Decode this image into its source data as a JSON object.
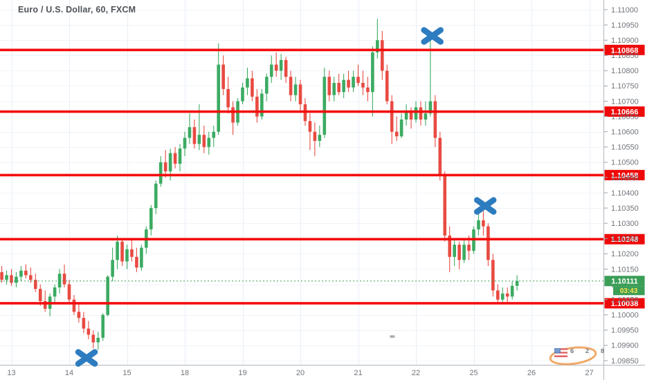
{
  "header": {
    "title": "Euro / U.S. Dollar, 60, FXCM"
  },
  "colors": {
    "up": "#3cab62",
    "down": "#e84b42",
    "level_line": "#f30d0d",
    "level_label_bg": "#ef0a0a",
    "level_label_text": "#ffffff",
    "mark_blue": "#2e7cc0",
    "price_label_bg": "#3b9e57",
    "price_label_text": "#ffffff",
    "countdown_text": "#ffe24c",
    "axis_text": "#70747a",
    "grid_horizontal": "#f0f4f8",
    "grid_vertical": "#e9eef6",
    "axis_line": "#b0b4ba",
    "dotted_line": "#3b9e57",
    "watermark_orange": "#f0a058"
  },
  "y_axis": {
    "ticks": [
      "1.11000",
      "1.10950",
      "1.10900",
      "1.10850",
      "1.10800",
      "1.10750",
      "1.10700",
      "1.10650",
      "1.10600",
      "1.10550",
      "1.10500",
      "1.10450",
      "1.10400",
      "1.10350",
      "1.10300",
      "1.10250",
      "1.10200",
      "1.10150",
      "1.10100",
      "1.10050",
      "1.10000",
      "1.09950",
      "1.09900",
      "1.09850"
    ]
  },
  "x_axis": {
    "labels": [
      "13",
      "14",
      "15",
      "18",
      "19",
      "20",
      "21",
      "22",
      "25",
      "26",
      "27"
    ]
  },
  "levels": [
    {
      "label": "1.10868",
      "price": 1.10868
    },
    {
      "label": "1.10666",
      "price": 1.10666
    },
    {
      "label": "1.10458",
      "price": 1.10458
    },
    {
      "label": "1.10248",
      "price": 1.10248
    },
    {
      "label": "1.10038",
      "price": 1.10038
    }
  ],
  "current_price": {
    "label": "1.10111",
    "value": 1.10111,
    "countdown": "03:43"
  },
  "watermark": {
    "text": "6 2 8"
  },
  "chart_data": {
    "type": "candlestick",
    "title": "Euro / U.S. Dollar, 60, FXCM",
    "symbol": "Euro / U.S. Dollar",
    "interval": "60",
    "exchange": "FXCM",
    "price_range": [
      1.0985,
      1.11
    ],
    "tick_step": 0.0005,
    "days": [
      "13",
      "14",
      "15",
      "18",
      "19",
      "20",
      "21",
      "22",
      "25",
      "26",
      "27"
    ],
    "candles_per_day": 12,
    "horizontal_levels": [
      1.10868,
      1.10666,
      1.10458,
      1.10248,
      1.10038
    ],
    "last_price": 1.10111,
    "marks": [
      {
        "slot": 15.6,
        "price": 1.09859
      },
      {
        "slot": 87.4,
        "price": 1.10914
      },
      {
        "slot": 98.4,
        "price": 1.10357
      }
    ],
    "annotations": [
      {
        "type": "dash",
        "slot": 79.1,
        "price": 1.09929
      }
    ],
    "candles": [
      [
        -2,
        1.1014,
        1.1016,
        1.10105,
        1.10115
      ],
      [
        -1,
        1.10115,
        1.10145,
        1.101,
        1.1013
      ],
      [
        0,
        1.1013,
        1.1015,
        1.10095,
        1.10105
      ],
      [
        1,
        1.10105,
        1.1014,
        1.1009,
        1.10125
      ],
      [
        2,
        1.10125,
        1.1016,
        1.1011,
        1.10145
      ],
      [
        3,
        1.10145,
        1.10165,
        1.1012,
        1.1013
      ],
      [
        4,
        1.1013,
        1.10155,
        1.10105,
        1.10115
      ],
      [
        5,
        1.10115,
        1.10135,
        1.10075,
        1.10085
      ],
      [
        6,
        1.10085,
        1.101,
        1.1003,
        1.10045
      ],
      [
        7,
        1.10045,
        1.1008,
        1.1001,
        1.1002
      ],
      [
        8,
        1.1002,
        1.1007,
        1.09995,
        1.1006
      ],
      [
        9,
        1.1006,
        1.101,
        1.1004,
        1.1009
      ],
      [
        10,
        1.1009,
        1.1015,
        1.1007,
        1.10135
      ],
      [
        11,
        1.10135,
        1.10165,
        1.1009,
        1.101
      ],
      [
        12,
        1.101,
        1.10115,
        1.1004,
        1.1005
      ],
      [
        13,
        1.1005,
        1.10065,
        1.1,
        1.1001
      ],
      [
        14,
        1.1001,
        1.1004,
        1.09975,
        1.0999
      ],
      [
        15,
        1.0999,
        1.1001,
        1.0994,
        1.09955
      ],
      [
        16,
        1.09955,
        1.0998,
        1.0992,
        1.09935
      ],
      [
        17,
        1.09935,
        1.0995,
        1.0989,
        1.0991
      ],
      [
        18,
        1.0991,
        1.09945,
        1.09885,
        1.09925
      ],
      [
        19,
        1.09925,
        1.10005,
        1.09915,
        1.1
      ],
      [
        20,
        1.1,
        1.1013,
        1.09995,
        1.10125
      ],
      [
        21,
        1.10125,
        1.1022,
        1.1011,
        1.1018
      ],
      [
        22,
        1.1018,
        1.1026,
        1.1015,
        1.1024
      ],
      [
        23,
        1.1024,
        1.1025,
        1.1016,
        1.10175
      ],
      [
        24,
        1.10175,
        1.1023,
        1.1015,
        1.10215
      ],
      [
        25,
        1.10215,
        1.10245,
        1.10175,
        1.1019
      ],
      [
        26,
        1.1019,
        1.1022,
        1.1014,
        1.10155
      ],
      [
        27,
        1.10155,
        1.1023,
        1.10145,
        1.1022
      ],
      [
        28,
        1.1022,
        1.1029,
        1.102,
        1.1028
      ],
      [
        29,
        1.1028,
        1.1036,
        1.1026,
        1.1035
      ],
      [
        30,
        1.1035,
        1.1044,
        1.1033,
        1.1043
      ],
      [
        31,
        1.1043,
        1.1052,
        1.1042,
        1.105
      ],
      [
        32,
        1.105,
        1.1054,
        1.1045,
        1.1047
      ],
      [
        33,
        1.1047,
        1.10545,
        1.1044,
        1.1053
      ],
      [
        34,
        1.1053,
        1.1055,
        1.1048,
        1.10495
      ],
      [
        35,
        1.10495,
        1.1056,
        1.1047,
        1.10545
      ],
      [
        36,
        1.10545,
        1.106,
        1.1052,
        1.1058
      ],
      [
        37,
        1.1058,
        1.1066,
        1.1056,
        1.10615
      ],
      [
        38,
        1.10615,
        1.1064,
        1.10545,
        1.1056
      ],
      [
        39,
        1.1056,
        1.1069,
        1.1054,
        1.1059
      ],
      [
        40,
        1.1059,
        1.1062,
        1.1053,
        1.1055
      ],
      [
        41,
        1.1055,
        1.106,
        1.10525,
        1.1058
      ],
      [
        42,
        1.1058,
        1.1062,
        1.1055,
        1.106
      ],
      [
        43,
        1.106,
        1.1089,
        1.1059,
        1.1082
      ],
      [
        44,
        1.1082,
        1.1085,
        1.1072,
        1.1074
      ],
      [
        45,
        1.1074,
        1.1078,
        1.1066,
        1.1068
      ],
      [
        46,
        1.1068,
        1.107,
        1.1059,
        1.1063
      ],
      [
        47,
        1.1063,
        1.1071,
        1.1062,
        1.107
      ],
      [
        48,
        1.107,
        1.1076,
        1.1069,
        1.10745
      ],
      [
        49,
        1.10745,
        1.1081,
        1.1072,
        1.10775
      ],
      [
        50,
        1.10775,
        1.108,
        1.107,
        1.10715
      ],
      [
        51,
        1.10715,
        1.1074,
        1.1063,
        1.1065
      ],
      [
        52,
        1.1065,
        1.1074,
        1.1064,
        1.10725
      ],
      [
        53,
        1.10725,
        1.1079,
        1.107,
        1.1078
      ],
      [
        54,
        1.1078,
        1.1085,
        1.1076,
        1.1082
      ],
      [
        55,
        1.1082,
        1.1086,
        1.1078,
        1.108
      ],
      [
        56,
        1.108,
        1.10855,
        1.1077,
        1.10835
      ],
      [
        57,
        1.10835,
        1.10845,
        1.1076,
        1.1078
      ],
      [
        58,
        1.1078,
        1.108,
        1.107,
        1.1072
      ],
      [
        59,
        1.1072,
        1.1078,
        1.107,
        1.10755
      ],
      [
        60,
        1.10755,
        1.1077,
        1.1067,
        1.1069
      ],
      [
        61,
        1.1069,
        1.1071,
        1.1062,
        1.10635
      ],
      [
        62,
        1.10635,
        1.1066,
        1.1054,
        1.106
      ],
      [
        63,
        1.106,
        1.1063,
        1.1052,
        1.1057
      ],
      [
        64,
        1.1057,
        1.1062,
        1.1055,
        1.1059
      ],
      [
        65,
        1.1059,
        1.1081,
        1.1058,
        1.1078
      ],
      [
        66,
        1.1078,
        1.108,
        1.107,
        1.1072
      ],
      [
        67,
        1.1072,
        1.1078,
        1.107,
        1.1076
      ],
      [
        68,
        1.1076,
        1.1079,
        1.1072,
        1.1073
      ],
      [
        69,
        1.1073,
        1.1079,
        1.1071,
        1.1077
      ],
      [
        70,
        1.1077,
        1.108,
        1.1073,
        1.10745
      ],
      [
        71,
        1.10745,
        1.108,
        1.1073,
        1.1078
      ],
      [
        72,
        1.1078,
        1.1082,
        1.1075,
        1.1076
      ],
      [
        73,
        1.1076,
        1.108,
        1.1072,
        1.10745
      ],
      [
        74,
        1.10745,
        1.1078,
        1.107,
        1.1073
      ],
      [
        75,
        1.1073,
        1.1088,
        1.1065,
        1.1086
      ],
      [
        76,
        1.1086,
        1.1097,
        1.1084,
        1.109
      ],
      [
        77,
        1.109,
        1.1093,
        1.1077,
        1.108
      ],
      [
        78,
        1.108,
        1.1082,
        1.1069,
        1.107
      ],
      [
        79,
        1.107,
        1.1072,
        1.1056,
        1.106
      ],
      [
        80,
        1.106,
        1.1065,
        1.1057,
        1.10585
      ],
      [
        81,
        1.10585,
        1.1066,
        1.1058,
        1.1064
      ],
      [
        82,
        1.1064,
        1.1069,
        1.1062,
        1.10665
      ],
      [
        83,
        1.10665,
        1.1068,
        1.1061,
        1.1064
      ],
      [
        84,
        1.1064,
        1.107,
        1.1063,
        1.1068
      ],
      [
        85,
        1.1068,
        1.107,
        1.1062,
        1.1064
      ],
      [
        86,
        1.1064,
        1.107,
        1.1062,
        1.1066
      ],
      [
        87,
        1.1066,
        1.1092,
        1.1065,
        1.107
      ],
      [
        88,
        1.107,
        1.1072,
        1.1055,
        1.1058
      ],
      [
        89,
        1.1058,
        1.106,
        1.1044,
        1.1046
      ],
      [
        90,
        1.1046,
        1.1047,
        1.1024,
        1.1026
      ],
      [
        91,
        1.1026,
        1.1029,
        1.1014,
        1.1019
      ],
      [
        92,
        1.1019,
        1.1025,
        1.1016,
        1.1023
      ],
      [
        93,
        1.1023,
        1.1024,
        1.1015,
        1.1018
      ],
      [
        94,
        1.1018,
        1.1025,
        1.1017,
        1.1023
      ],
      [
        95,
        1.1023,
        1.1026,
        1.1018,
        1.1021
      ],
      [
        96,
        1.1021,
        1.1029,
        1.102,
        1.1028
      ],
      [
        97,
        1.1028,
        1.1035,
        1.1026,
        1.1031
      ],
      [
        98,
        1.1031,
        1.1034,
        1.1026,
        1.1029
      ],
      [
        99,
        1.1029,
        1.103,
        1.1016,
        1.1018
      ],
      [
        100,
        1.1018,
        1.102,
        1.1006,
        1.1008
      ],
      [
        101,
        1.1008,
        1.101,
        1.10035,
        1.1005
      ],
      [
        102,
        1.1005,
        1.1009,
        1.1004,
        1.1007
      ],
      [
        103,
        1.1007,
        1.1009,
        1.10035,
        1.1006
      ],
      [
        104,
        1.1006,
        1.1011,
        1.1005,
        1.10095
      ],
      [
        105,
        1.10095,
        1.1013,
        1.1008,
        1.10111
      ]
    ]
  }
}
